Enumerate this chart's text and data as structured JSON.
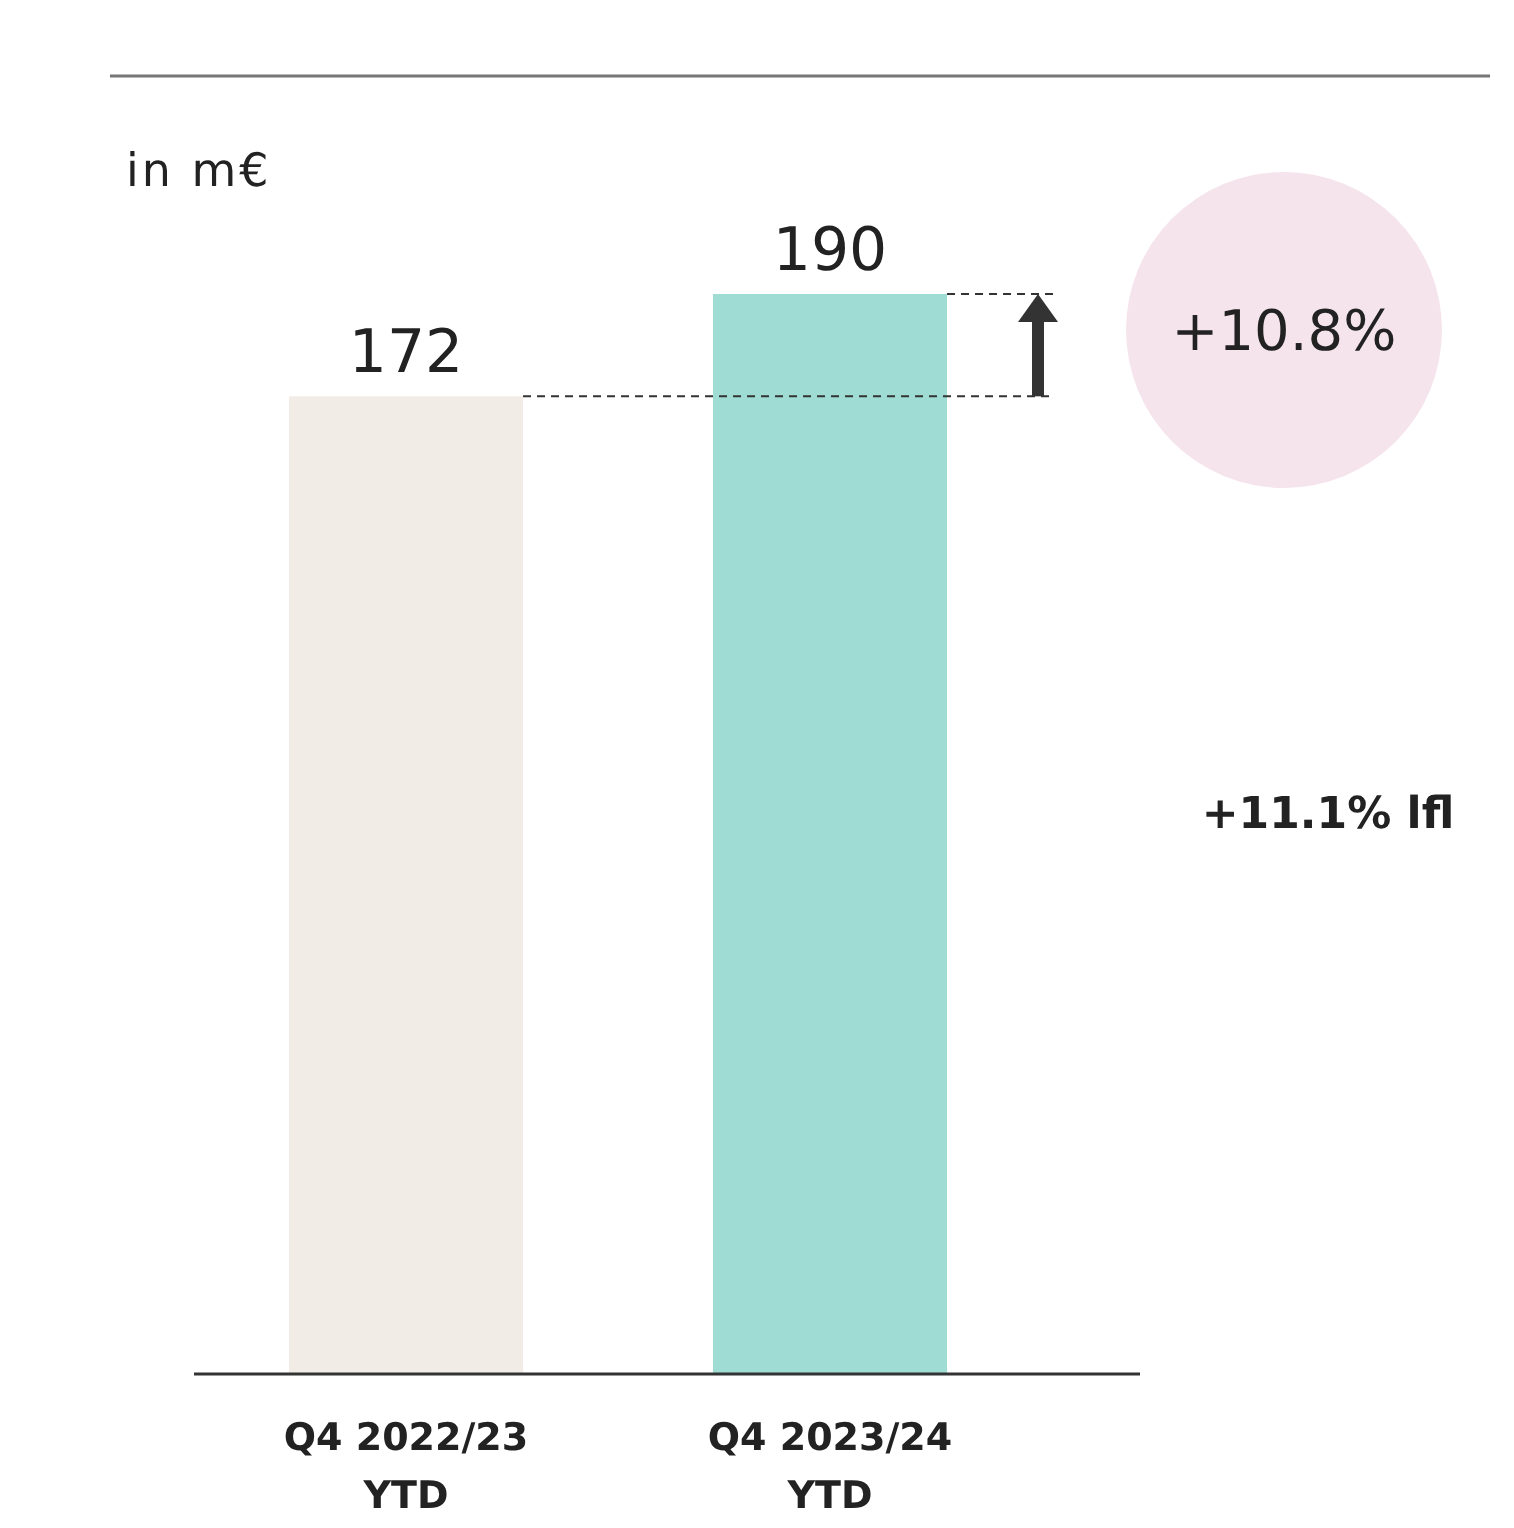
{
  "chart_data": {
    "type": "bar",
    "categories": [
      "Q4 2022/23\nYTD",
      "Q4 2023/24\nYTD"
    ],
    "values": [
      172,
      190
    ],
    "colors": [
      "#f1ede6",
      "#9fdcd4"
    ],
    "ylim": [
      0,
      190
    ],
    "data_labels": true,
    "tick_labels": "x",
    "ref_lines": [
      {
        "axis": "y",
        "value": 172,
        "line_style": "dashed",
        "color": "#333333"
      },
      {
        "axis": "y",
        "value": 190,
        "line_style": "dashed",
        "color": "#333333"
      }
    ],
    "annotations": [
      "in m€",
      "+10.8%",
      "+11.1% lfl"
    ]
  }
}
